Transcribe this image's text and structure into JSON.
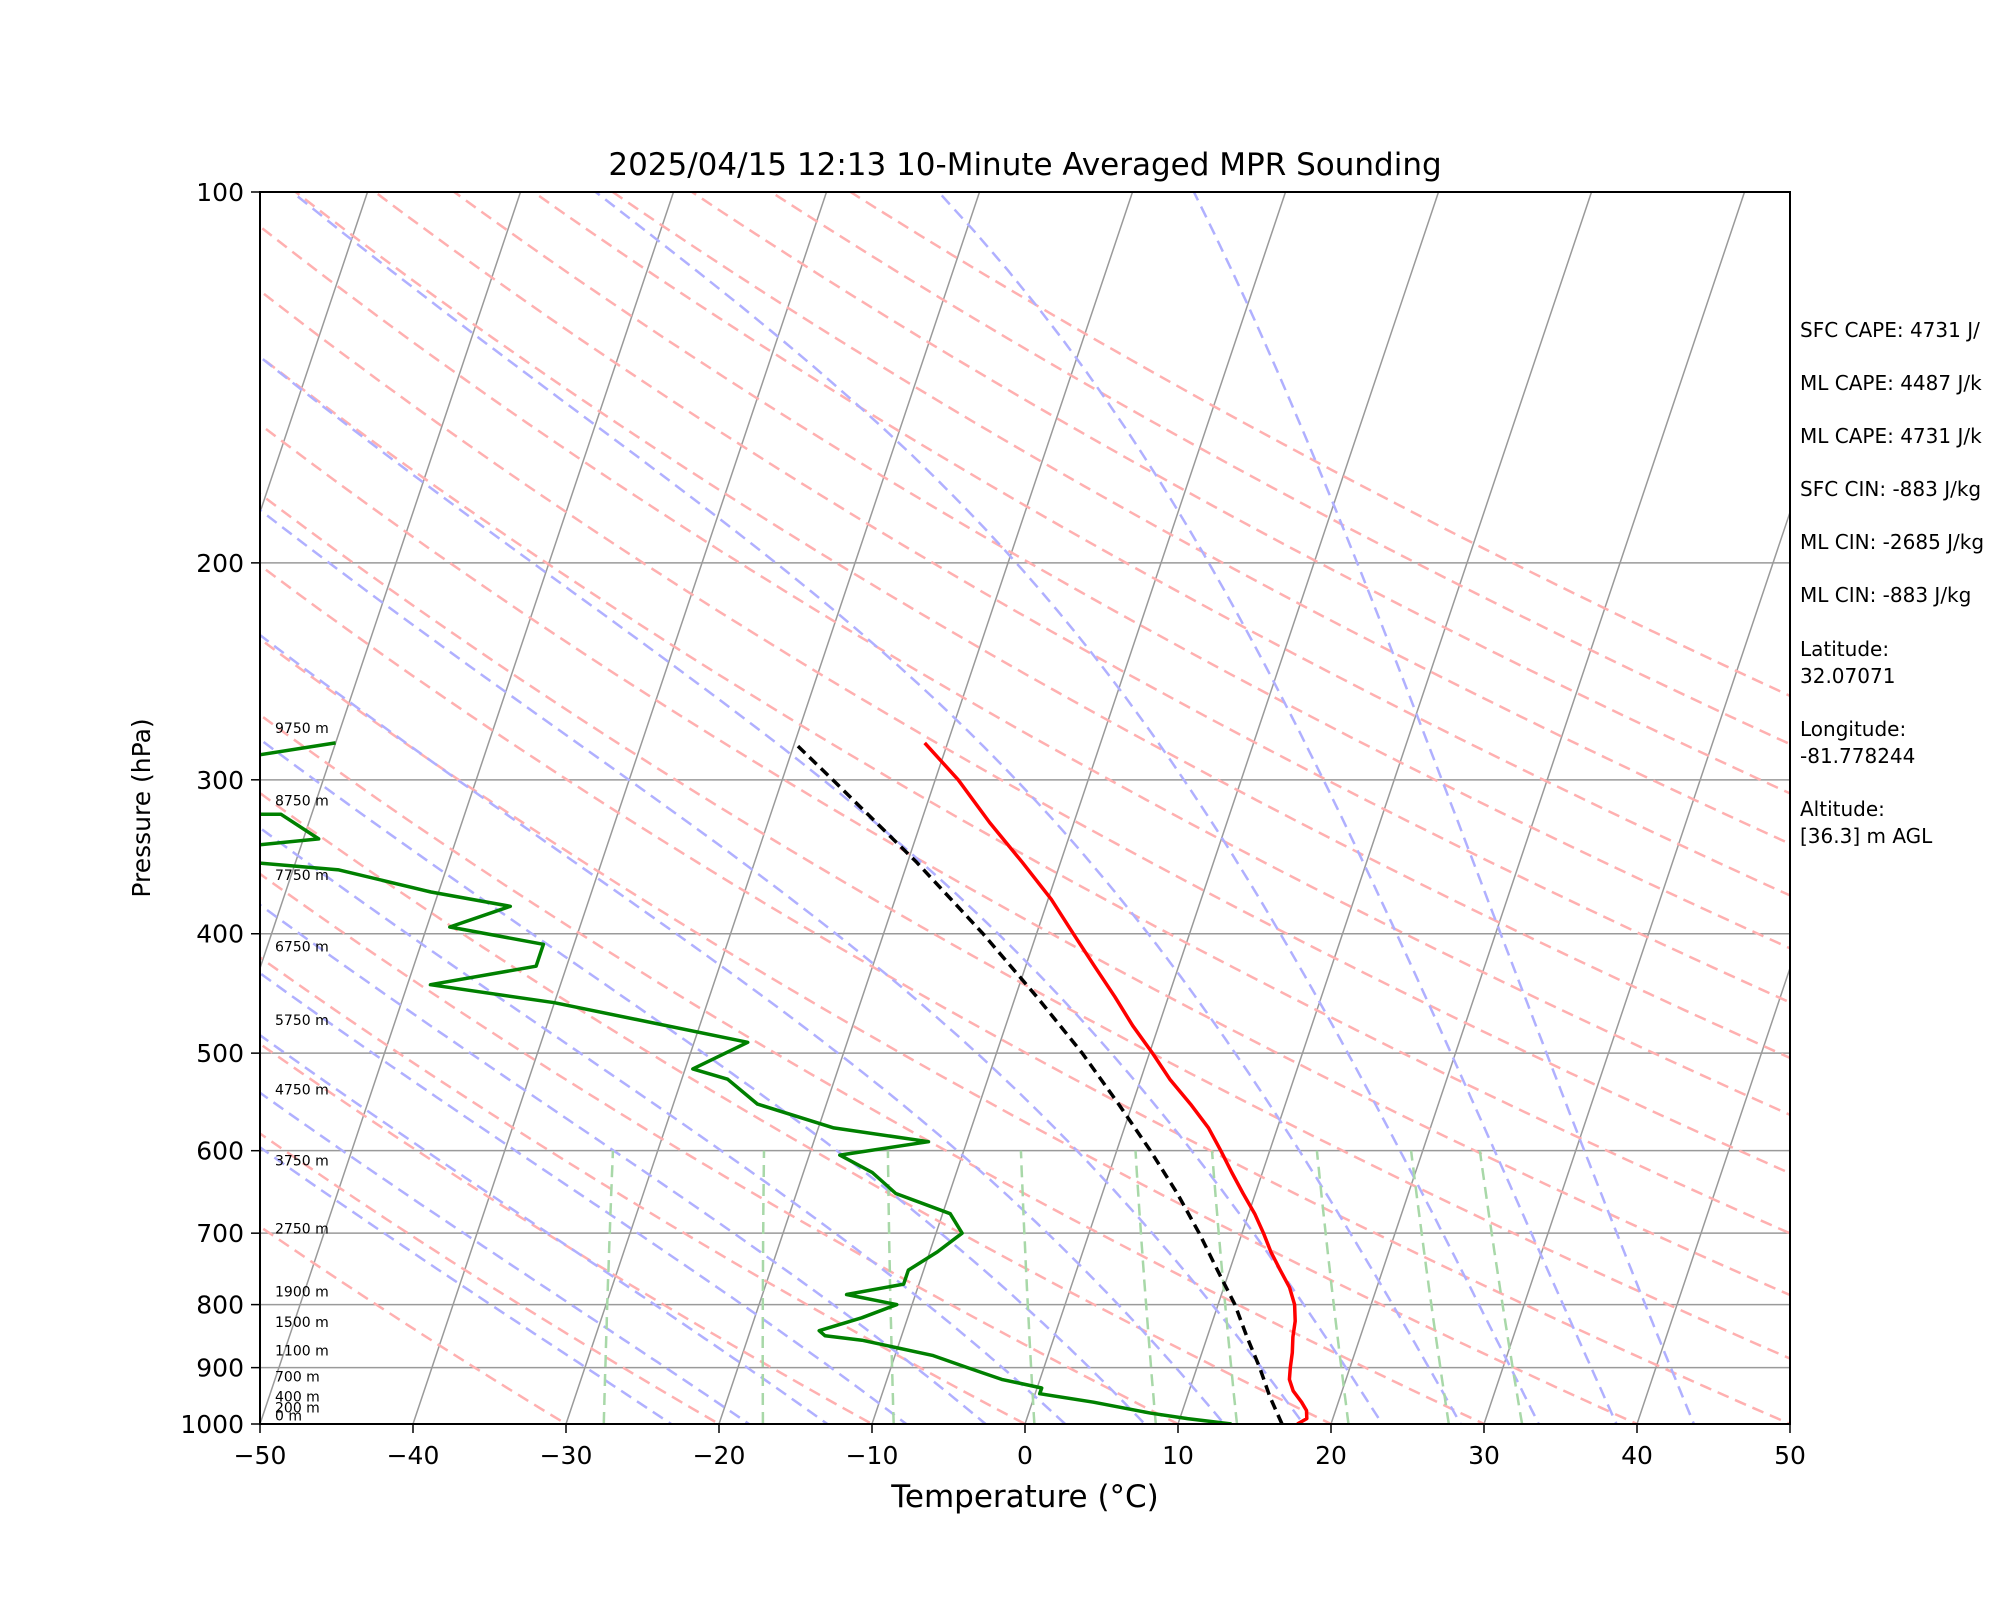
{
  "chart_data": {
    "type": "line",
    "title": "2025/04/15 12:13 10-Minute Averaged MPR Sounding",
    "xlabel": "Temperature (°C)",
    "ylabel": "Pressure (hPa)",
    "xlim": [
      -50,
      50
    ],
    "ylim": [
      1000,
      100
    ],
    "y_scale": "log",
    "x_ticks": [
      "−50",
      "−40",
      "−30",
      "−20",
      "−10",
      "0",
      "10",
      "20",
      "30",
      "40",
      "50"
    ],
    "y_ticks": [
      "1000",
      "900",
      "800",
      "700",
      "600",
      "500",
      "400",
      "300",
      "200",
      "100"
    ],
    "grid": true,
    "series": [
      {
        "color": "#ff0000",
        "points": [
          {
            "p": 1000,
            "t": 17.8
          },
          {
            "p": 990,
            "t": 18.3
          },
          {
            "p": 975,
            "t": 18.1
          },
          {
            "p": 960,
            "t": 17.6
          },
          {
            "p": 940,
            "t": 16.8
          },
          {
            "p": 920,
            "t": 16.3
          },
          {
            "p": 900,
            "t": 16.1
          },
          {
            "p": 875,
            "t": 15.9
          },
          {
            "p": 850,
            "t": 15.6
          },
          {
            "p": 825,
            "t": 15.4
          },
          {
            "p": 800,
            "t": 15.0
          },
          {
            "p": 775,
            "t": 14.3
          },
          {
            "p": 750,
            "t": 13.3
          },
          {
            "p": 725,
            "t": 12.3
          },
          {
            "p": 700,
            "t": 11.4
          },
          {
            "p": 675,
            "t": 10.4
          },
          {
            "p": 650,
            "t": 9.2
          },
          {
            "p": 625,
            "t": 8.0
          },
          {
            "p": 600,
            "t": 6.8
          },
          {
            "p": 575,
            "t": 5.5
          },
          {
            "p": 550,
            "t": 3.8
          },
          {
            "p": 525,
            "t": 1.9
          },
          {
            "p": 500,
            "t": 0.2
          },
          {
            "p": 475,
            "t": -1.7
          },
          {
            "p": 450,
            "t": -3.5
          },
          {
            "p": 425,
            "t": -5.5
          },
          {
            "p": 400,
            "t": -7.6
          },
          {
            "p": 375,
            "t": -9.8
          },
          {
            "p": 350,
            "t": -12.5
          },
          {
            "p": 325,
            "t": -15.5
          },
          {
            "p": 300,
            "t": -18.5
          },
          {
            "p": 280,
            "t": -21.5
          }
        ]
      },
      {
        "color": "#008000",
        "points": [
          {
            "p": 1000,
            "t": 13.5
          },
          {
            "p": 990,
            "t": 10.5
          },
          {
            "p": 980,
            "t": 8.0
          },
          {
            "p": 960,
            "t": 4.0
          },
          {
            "p": 945,
            "t": 0.3
          },
          {
            "p": 935,
            "t": 0.3
          },
          {
            "p": 920,
            "t": -2.5
          },
          {
            "p": 900,
            "t": -5.0
          },
          {
            "p": 880,
            "t": -7.5
          },
          {
            "p": 855,
            "t": -12.5
          },
          {
            "p": 848,
            "t": -15.0
          },
          {
            "p": 840,
            "t": -15.5
          },
          {
            "p": 820,
            "t": -13.0
          },
          {
            "p": 800,
            "t": -11.0
          },
          {
            "p": 785,
            "t": -14.5
          },
          {
            "p": 770,
            "t": -11.0
          },
          {
            "p": 750,
            "t": -11.0
          },
          {
            "p": 725,
            "t": -9.5
          },
          {
            "p": 700,
            "t": -8.3
          },
          {
            "p": 675,
            "t": -9.5
          },
          {
            "p": 650,
            "t": -13.5
          },
          {
            "p": 625,
            "t": -15.5
          },
          {
            "p": 605,
            "t": -18.0
          },
          {
            "p": 590,
            "t": -12.5
          },
          {
            "p": 575,
            "t": -19.0
          },
          {
            "p": 550,
            "t": -24.5
          },
          {
            "p": 525,
            "t": -27.0
          },
          {
            "p": 515,
            "t": -29.5
          },
          {
            "p": 490,
            "t": -26.5
          },
          {
            "p": 455,
            "t": -40.0
          },
          {
            "p": 440,
            "t": -48.5
          },
          {
            "p": 425,
            "t": -42.0
          },
          {
            "p": 408,
            "t": -42.0
          },
          {
            "p": 395,
            "t": -48.5
          },
          {
            "p": 380,
            "t": -45.0
          },
          {
            "p": 370,
            "t": -50.5
          },
          {
            "p": 355,
            "t": -57.0
          },
          {
            "p": 345,
            "t": -69.0
          },
          {
            "p": 335,
            "t": -59.0
          },
          {
            "p": 320,
            "t": -62.0
          },
          {
            "p": 320,
            "t": -70.0
          },
          {
            "p": 295,
            "t": -71.0
          },
          {
            "p": 280,
            "t": -60.0
          }
        ]
      },
      {
        "color": "#000000",
        "dashed": true,
        "points": [
          {
            "p": 1000,
            "t": 16.8
          },
          {
            "p": 950,
            "t": 15.4
          },
          {
            "p": 900,
            "t": 14.1
          },
          {
            "p": 850,
            "t": 12.6
          },
          {
            "p": 800,
            "t": 11.1
          },
          {
            "p": 750,
            "t": 9.2
          },
          {
            "p": 700,
            "t": 7.2
          },
          {
            "p": 650,
            "t": 4.9
          },
          {
            "p": 600,
            "t": 2.2
          },
          {
            "p": 550,
            "t": -0.9
          },
          {
            "p": 500,
            "t": -4.4
          },
          {
            "p": 450,
            "t": -8.6
          },
          {
            "p": 400,
            "t": -13.5
          },
          {
            "p": 350,
            "t": -19.4
          },
          {
            "p": 300,
            "t": -26.7
          },
          {
            "p": 280,
            "t": -30.0
          }
        ]
      }
    ],
    "height_labels": [
      "0 m",
      "200 m",
      "400 m",
      "700 m",
      "1100 m",
      "1500 m",
      "1900 m",
      "2750 m",
      "3750 m",
      "4750 m",
      "5750 m",
      "6750 m",
      "7750 m",
      "8750 m",
      "9750 m"
    ],
    "height_label_pressures": [
      997,
      982,
      962,
      927,
      883,
      837,
      791,
      703,
      619,
      542,
      476,
      415,
      363,
      316,
      276
    ],
    "stats": [
      "SFC CAPE: 4731 J/",
      "ML CAPE: 4487 J/k",
      "ML CAPE: 4731 J/k",
      "SFC CIN: -883 J/kg",
      "ML CIN: -2685 J/kg",
      "ML CIN: -883 J/kg",
      "Latitude:",
      "32.07071",
      "Longitude:",
      "-81.778244",
      "Altitude:",
      "[36.3] m AGL"
    ],
    "background_lines": {
      "dry_adiabat_thetas_c": [
        -30,
        -20,
        -10,
        0,
        10,
        20,
        30,
        40,
        50,
        60,
        70,
        80,
        90,
        100,
        110,
        120,
        130,
        140,
        150,
        160,
        170,
        180
      ],
      "moist_adiabat_start_c": [
        -20,
        -15,
        -10,
        -5,
        0,
        5,
        10,
        15,
        20,
        25,
        30,
        35,
        40,
        45
      ],
      "mixing_ratio_gkg": [
        0.4,
        1,
        2,
        4,
        7,
        10,
        16,
        24,
        32
      ],
      "colors": {
        "dry": "#ffb0b0",
        "moist": "#b0b0ff",
        "mixing": "#a8d8a8",
        "isotherm": "#9a9a9a",
        "isobar": "#9a9a9a"
      }
    }
  }
}
